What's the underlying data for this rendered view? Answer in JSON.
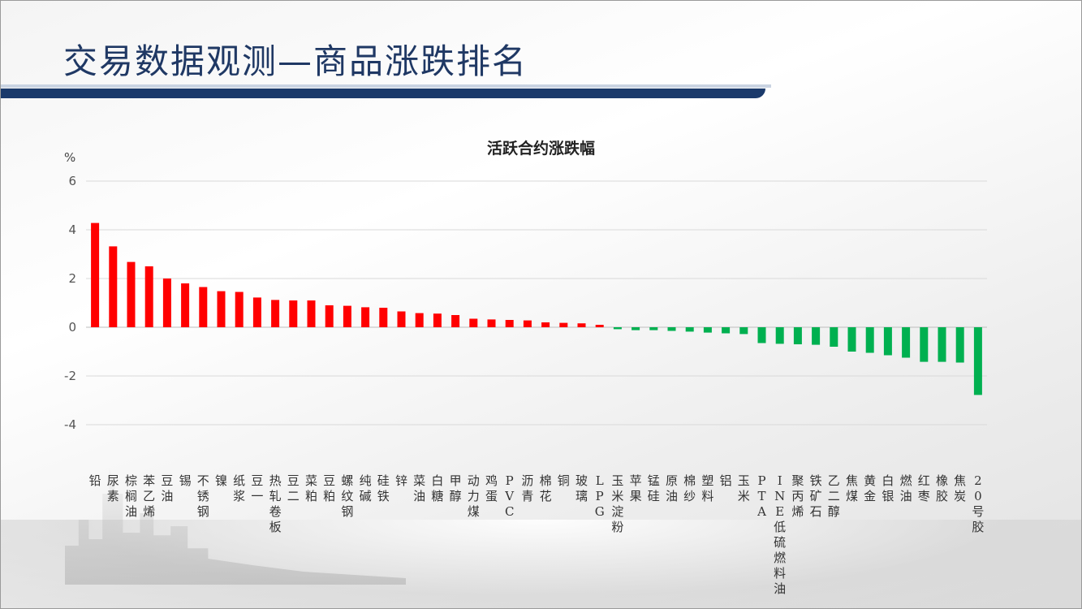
{
  "slide": {
    "title": "交易数据观测—商品涨跌排名"
  },
  "colors": {
    "rise": "#ff0000",
    "fall": "#00b050",
    "title": "#1f3864",
    "title_bar": "#1b3a6b"
  },
  "chart_data": {
    "type": "bar",
    "title": "活跃合约涨跌幅",
    "ylabel": "%",
    "ylim": [
      -4,
      6
    ],
    "yticks": [
      6,
      4,
      2,
      0,
      -2,
      -4
    ],
    "grid": true,
    "legend": "none",
    "categories": [
      "铅",
      "尿素",
      "棕榈油",
      "苯乙烯",
      "豆油",
      "锡",
      "不锈钢",
      "镍",
      "纸浆",
      "豆一",
      "热轧卷板",
      "豆二",
      "菜粕",
      "豆粕",
      "螺纹钢",
      "纯碱",
      "硅铁",
      "锌",
      "菜油",
      "白糖",
      "甲醇",
      "动力煤",
      "鸡蛋",
      "PVC",
      "沥青",
      "棉花",
      "铜",
      "玻璃",
      "LPG",
      "玉米淀粉",
      "苹果",
      "锰硅",
      "原油",
      "棉纱",
      "塑料",
      "铝",
      "玉米",
      "PTA",
      "INE低硫燃料油",
      "聚丙烯",
      "铁矿石",
      "乙二醇",
      "焦煤",
      "黄金",
      "白银",
      "燃油",
      "红枣",
      "橡胶",
      "焦炭",
      "20号胶"
    ],
    "values": [
      4.28,
      3.32,
      2.68,
      2.5,
      2.0,
      1.8,
      1.65,
      1.48,
      1.45,
      1.22,
      1.12,
      1.1,
      1.1,
      0.9,
      0.88,
      0.82,
      0.8,
      0.65,
      0.58,
      0.56,
      0.5,
      0.35,
      0.32,
      0.3,
      0.28,
      0.2,
      0.18,
      0.16,
      0.1,
      -0.08,
      -0.12,
      -0.12,
      -0.15,
      -0.18,
      -0.22,
      -0.25,
      -0.28,
      -0.65,
      -0.68,
      -0.7,
      -0.72,
      -0.8,
      -1.0,
      -1.05,
      -1.15,
      -1.25,
      -1.42,
      -1.42,
      -1.45,
      -2.78
    ]
  }
}
